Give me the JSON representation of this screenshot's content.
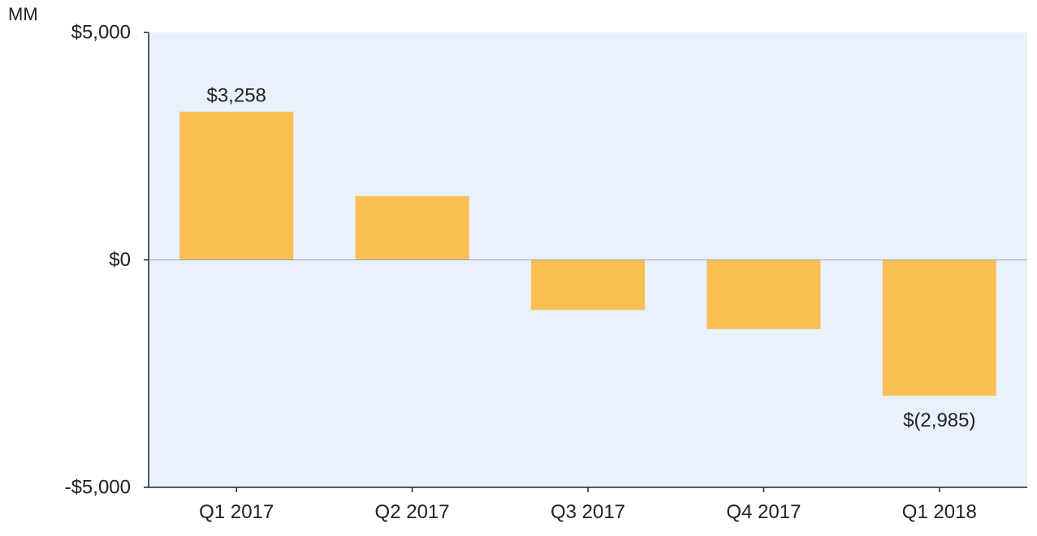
{
  "chart_data": {
    "type": "bar",
    "unit_label": "MM",
    "categories": [
      "Q1 2017",
      "Q2 2017",
      "Q3 2017",
      "Q4 2017",
      "Q1 2018"
    ],
    "values": [
      3258,
      1400,
      -1100,
      -1520,
      -2985
    ],
    "data_labels": [
      "$3,258",
      "",
      "",
      "",
      "$(2,985)"
    ],
    "ylim": [
      -5000,
      5000
    ],
    "yticks": [
      -5000,
      0,
      5000
    ],
    "ytick_labels": [
      "-$5,000",
      "$0",
      "$5,000"
    ],
    "title": "",
    "xlabel": "",
    "ylabel": "",
    "grid": false,
    "colors": {
      "bar": "#F9BF52",
      "plot_background": "#E9F1FC",
      "axis": "#222222",
      "zero_line": "#9AA3AE",
      "text": "#222222"
    }
  }
}
